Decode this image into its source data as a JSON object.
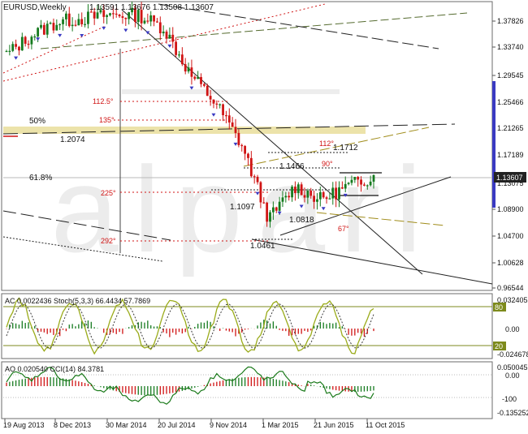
{
  "main": {
    "symbol_label": "EURUSD,Weekly",
    "ohlc_label": "1.13591 1.13676 1.13508 1.13607",
    "price_ticks": [
      "1.37826",
      "1.33740",
      "1.29545",
      "1.25466",
      "1.21265",
      "1.17189",
      "1.13075",
      "1.08900",
      "1.04700",
      "1.00628",
      "0.96544"
    ],
    "current_price": "1.13607",
    "pct_labels": [
      "50%",
      "61.8%"
    ],
    "fib_angles": [
      "112.5°",
      "135°",
      "225°",
      "292°",
      "112°",
      "90°",
      "67°"
    ],
    "price_labels": [
      "1.2074",
      "1.1466",
      "1.1712",
      "1.1097",
      "1.0818",
      "1.0461"
    ],
    "watermark": "alpari"
  },
  "ac_panel": {
    "label": "AC 0.0022436  Stoch(5,3,3) 66.4434 57.7869",
    "ticks": [
      "0.032405",
      "0.00",
      "-0.024678"
    ],
    "levels": [
      "80",
      "20"
    ]
  },
  "ao_panel": {
    "label": "AO 0.020540  CCI(14) 84.3781",
    "ticks": [
      "0.050045",
      "0.00",
      "-100",
      "-0.135252"
    ],
    "levels": [
      "100",
      "-100"
    ]
  },
  "date_ticks": [
    "19 Aug 2013",
    "8 Dec 2013",
    "30 Mar 2014",
    "20 Jul 2014",
    "9 Nov 2014",
    "1 Mar 2015",
    "21 Jun 2015",
    "11 Oct 2015"
  ],
  "chart_data": {
    "type": "line",
    "title": "EURUSD,Weekly",
    "x": [
      "2013-07",
      "2013-09",
      "2013-11",
      "2014-01",
      "2014-03",
      "2014-05",
      "2014-07",
      "2014-09",
      "2014-11",
      "2015-01",
      "2015-03",
      "2015-05",
      "2015-07",
      "2015-09",
      "2015-11"
    ],
    "series": [
      {
        "values": [
          1.32,
          1.35,
          1.37,
          1.375,
          1.38,
          1.38,
          1.36,
          1.29,
          1.245,
          1.18,
          1.07,
          1.12,
          1.1,
          1.12,
          1.136
        ]
      }
    ],
    "ylim": [
      0.965,
      1.395
    ]
  },
  "colors": {
    "bull": "#157a1e",
    "bear": "#d01414",
    "fib": "#e82020",
    "accent": "#3a3ac2",
    "level": "#e9dea0"
  }
}
